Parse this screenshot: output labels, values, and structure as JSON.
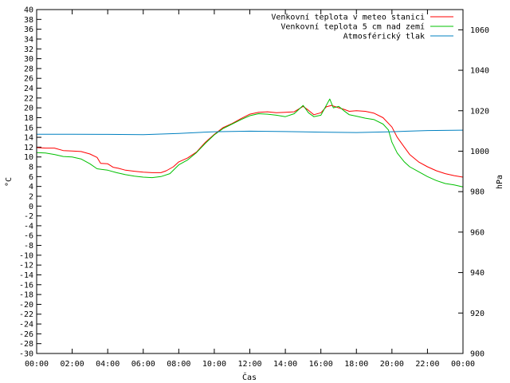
{
  "chart_data": {
    "type": "line",
    "xlabel": "Čas",
    "ylabel": "°C",
    "y2label": "hPa",
    "x_ticks": [
      "00:00",
      "02:00",
      "04:00",
      "06:00",
      "08:00",
      "10:00",
      "12:00",
      "14:00",
      "16:00",
      "18:00",
      "20:00",
      "22:00",
      "00:00"
    ],
    "xlim": [
      0,
      24
    ],
    "ylim": [
      -30,
      40
    ],
    "y_ticks": [
      40,
      38,
      36,
      34,
      32,
      30,
      28,
      26,
      24,
      22,
      20,
      18,
      16,
      14,
      12,
      10,
      8,
      6,
      4,
      2,
      0,
      -2,
      -4,
      -6,
      -8,
      -10,
      -12,
      -14,
      -16,
      -18,
      -20,
      -22,
      -24,
      -26,
      -28,
      -30
    ],
    "y2lim": [
      900,
      1070
    ],
    "y2_ticks": [
      1060,
      1040,
      1020,
      1000,
      980,
      960,
      940,
      920,
      900
    ],
    "legend_position": "top-right",
    "series": [
      {
        "name": "Venkovní teplota v meteo stanici",
        "axis": "y",
        "color": "#ff0000",
        "points": [
          [
            0,
            11.9
          ],
          [
            0.5,
            11.8
          ],
          [
            1,
            11.8
          ],
          [
            1.5,
            11.3
          ],
          [
            2,
            11.2
          ],
          [
            2.5,
            11.1
          ],
          [
            3,
            10.6
          ],
          [
            3.4,
            9.9
          ],
          [
            3.6,
            8.7
          ],
          [
            4,
            8.6
          ],
          [
            4.3,
            7.9
          ],
          [
            4.6,
            7.7
          ],
          [
            5,
            7.3
          ],
          [
            5.5,
            7.1
          ],
          [
            6,
            6.9
          ],
          [
            6.5,
            6.8
          ],
          [
            7,
            6.8
          ],
          [
            7.3,
            7.2
          ],
          [
            7.7,
            8.0
          ],
          [
            8,
            9.0
          ],
          [
            8.5,
            9.8
          ],
          [
            9,
            11.0
          ],
          [
            9.5,
            13.0
          ],
          [
            10,
            14.6
          ],
          [
            10.5,
            16.0
          ],
          [
            11,
            16.8
          ],
          [
            11.5,
            17.8
          ],
          [
            12,
            18.7
          ],
          [
            12.5,
            19.1
          ],
          [
            13,
            19.2
          ],
          [
            13.5,
            19.0
          ],
          [
            14,
            19.1
          ],
          [
            14.5,
            19.2
          ],
          [
            15,
            20.3
          ],
          [
            15.3,
            19.5
          ],
          [
            15.6,
            18.6
          ],
          [
            16,
            19.0
          ],
          [
            16.3,
            20.2
          ],
          [
            16.6,
            20.5
          ],
          [
            17,
            20.0
          ],
          [
            17.3,
            19.7
          ],
          [
            17.6,
            19.3
          ],
          [
            18,
            19.4
          ],
          [
            18.5,
            19.3
          ],
          [
            19,
            18.9
          ],
          [
            19.5,
            18.0
          ],
          [
            20,
            16.1
          ],
          [
            20.3,
            14.0
          ],
          [
            20.7,
            12.0
          ],
          [
            21,
            10.5
          ],
          [
            21.5,
            9.0
          ],
          [
            22,
            8.0
          ],
          [
            22.5,
            7.2
          ],
          [
            23,
            6.6
          ],
          [
            23.5,
            6.2
          ],
          [
            24,
            5.9
          ]
        ]
      },
      {
        "name": "Venkovní teplota 5 cm nad zemí",
        "axis": "y",
        "color": "#00c000",
        "points": [
          [
            0,
            10.9
          ],
          [
            0.5,
            10.8
          ],
          [
            1,
            10.5
          ],
          [
            1.5,
            10.1
          ],
          [
            2,
            10.0
          ],
          [
            2.5,
            9.6
          ],
          [
            3,
            8.6
          ],
          [
            3.4,
            7.6
          ],
          [
            4,
            7.3
          ],
          [
            4.5,
            6.8
          ],
          [
            5,
            6.4
          ],
          [
            5.5,
            6.1
          ],
          [
            6,
            5.9
          ],
          [
            6.5,
            5.8
          ],
          [
            7,
            6.0
          ],
          [
            7.5,
            6.6
          ],
          [
            8,
            8.4
          ],
          [
            8.5,
            9.4
          ],
          [
            9,
            10.9
          ],
          [
            9.5,
            12.8
          ],
          [
            10,
            14.5
          ],
          [
            10.5,
            15.8
          ],
          [
            11,
            16.7
          ],
          [
            11.5,
            17.6
          ],
          [
            12,
            18.4
          ],
          [
            12.5,
            18.8
          ],
          [
            13,
            18.7
          ],
          [
            13.5,
            18.5
          ],
          [
            14,
            18.2
          ],
          [
            14.5,
            18.8
          ],
          [
            15,
            20.5
          ],
          [
            15.3,
            19.0
          ],
          [
            15.6,
            18.2
          ],
          [
            16,
            18.5
          ],
          [
            16.2,
            19.8
          ],
          [
            16.5,
            21.8
          ],
          [
            16.7,
            20.0
          ],
          [
            17,
            20.3
          ],
          [
            17.3,
            19.4
          ],
          [
            17.6,
            18.6
          ],
          [
            18,
            18.3
          ],
          [
            18.5,
            17.9
          ],
          [
            19,
            17.6
          ],
          [
            19.5,
            16.7
          ],
          [
            19.8,
            15.5
          ],
          [
            20,
            13.0
          ],
          [
            20.3,
            10.8
          ],
          [
            20.7,
            9.0
          ],
          [
            21,
            8.0
          ],
          [
            21.5,
            7.0
          ],
          [
            22,
            6.0
          ],
          [
            22.5,
            5.2
          ],
          [
            23,
            4.6
          ],
          [
            23.5,
            4.3
          ],
          [
            24,
            3.9
          ]
        ]
      },
      {
        "name": "Atmosférický tlak",
        "axis": "y2",
        "color": "#0080c0",
        "points": [
          [
            0,
            1008.4
          ],
          [
            2,
            1008.4
          ],
          [
            4,
            1008.3
          ],
          [
            6,
            1008.2
          ],
          [
            8,
            1008.8
          ],
          [
            10,
            1009.6
          ],
          [
            12,
            1009.9
          ],
          [
            14,
            1009.7
          ],
          [
            16,
            1009.4
          ],
          [
            18,
            1009.2
          ],
          [
            20,
            1009.6
          ],
          [
            22,
            1010.2
          ],
          [
            24,
            1010.4
          ]
        ]
      }
    ]
  }
}
